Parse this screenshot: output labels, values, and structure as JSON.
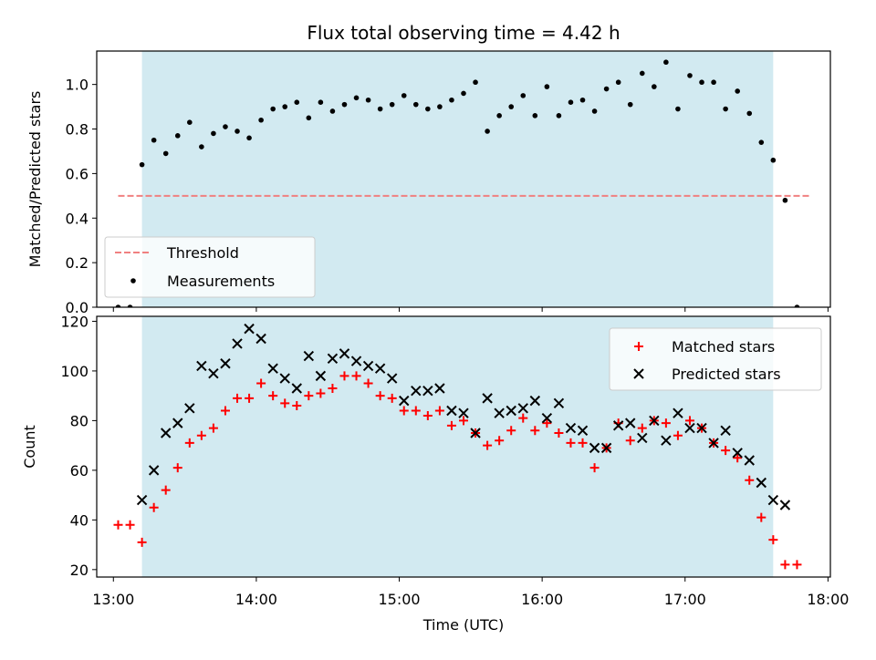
{
  "title": "Flux total observing time = 4.42 h",
  "colors": {
    "shade": "#add8e6",
    "threshold": "#f08080",
    "measurements": "#000000",
    "matched": "#ff0000",
    "predicted": "#000000"
  },
  "chart_data": [
    {
      "type": "scatter",
      "ylabel": "Matched/Predicted stars",
      "xlabel": "",
      "xlim": [
        "12:53",
        "18:01"
      ],
      "ylim": [
        0,
        1.15
      ],
      "y_ticks": [
        0.0,
        0.2,
        0.4,
        0.6,
        0.8,
        1.0
      ],
      "x_ticks": [
        "13:00",
        "14:00",
        "15:00",
        "16:00",
        "17:00",
        "18:00"
      ],
      "shaded_region": [
        "13:12",
        "17:37"
      ],
      "threshold": {
        "label": "Threshold",
        "value": 0.5,
        "x_range": [
          "13:02",
          "17:52"
        ]
      },
      "legend": {
        "position": "lower-left",
        "entries": [
          "Threshold",
          "Measurements"
        ]
      },
      "series": [
        {
          "name": "Measurements",
          "x": [
            "13:02",
            "13:07",
            "13:12",
            "13:17",
            "13:22",
            "13:27",
            "13:32",
            "13:37",
            "13:42",
            "13:47",
            "13:52",
            "13:57",
            "14:02",
            "14:07",
            "14:12",
            "14:17",
            "14:22",
            "14:27",
            "14:32",
            "14:37",
            "14:42",
            "14:47",
            "14:52",
            "14:57",
            "15:02",
            "15:07",
            "15:12",
            "15:17",
            "15:22",
            "15:27",
            "15:32",
            "15:37",
            "15:42",
            "15:47",
            "15:52",
            "15:57",
            "16:02",
            "16:07",
            "16:12",
            "16:17",
            "16:22",
            "16:27",
            "16:32",
            "16:37",
            "16:42",
            "16:47",
            "16:52",
            "16:57",
            "17:02",
            "17:07",
            "17:12",
            "17:17",
            "17:22",
            "17:27",
            "17:32",
            "17:37",
            "17:42",
            "17:47"
          ],
          "values": [
            0.0,
            0.0,
            0.64,
            0.75,
            0.69,
            0.77,
            0.83,
            0.72,
            0.78,
            0.81,
            0.79,
            0.76,
            0.84,
            0.89,
            0.9,
            0.92,
            0.85,
            0.92,
            0.88,
            0.91,
            0.94,
            0.93,
            0.89,
            0.91,
            0.95,
            0.91,
            0.89,
            0.9,
            0.93,
            0.96,
            1.01,
            0.79,
            0.86,
            0.9,
            0.95,
            0.86,
            0.99,
            0.86,
            0.92,
            0.93,
            0.88,
            0.98,
            1.01,
            0.91,
            1.05,
            0.99,
            1.1,
            0.89,
            1.04,
            1.01,
            1.01,
            0.89,
            0.97,
            0.87,
            0.74,
            0.66,
            0.48,
            0.0
          ]
        }
      ]
    },
    {
      "type": "scatter",
      "ylabel": "Count",
      "xlabel": "Time (UTC)",
      "xlim": [
        "12:53",
        "18:01"
      ],
      "ylim": [
        17,
        122
      ],
      "y_ticks": [
        20,
        40,
        60,
        80,
        100,
        120
      ],
      "x_ticks": [
        "13:00",
        "14:00",
        "15:00",
        "16:00",
        "17:00",
        "18:00"
      ],
      "shaded_region": [
        "13:12",
        "17:37"
      ],
      "legend": {
        "position": "top-right",
        "entries": [
          "Matched stars",
          "Predicted stars"
        ]
      },
      "series": [
        {
          "name": "Matched stars",
          "x": [
            "13:02",
            "13:07",
            "13:12",
            "13:17",
            "13:22",
            "13:27",
            "13:32",
            "13:37",
            "13:42",
            "13:47",
            "13:52",
            "13:57",
            "14:02",
            "14:07",
            "14:12",
            "14:17",
            "14:22",
            "14:27",
            "14:32",
            "14:37",
            "14:42",
            "14:47",
            "14:52",
            "14:57",
            "15:02",
            "15:07",
            "15:12",
            "15:17",
            "15:22",
            "15:27",
            "15:32",
            "15:37",
            "15:42",
            "15:47",
            "15:52",
            "15:57",
            "16:02",
            "16:07",
            "16:12",
            "16:17",
            "16:22",
            "16:27",
            "16:32",
            "16:37",
            "16:42",
            "16:47",
            "16:52",
            "16:57",
            "17:02",
            "17:07",
            "17:12",
            "17:17",
            "17:22",
            "17:27",
            "17:32",
            "17:37",
            "17:42",
            "17:47"
          ],
          "values": [
            38,
            38,
            31,
            45,
            52,
            61,
            71,
            74,
            77,
            84,
            89,
            89,
            95,
            90,
            87,
            86,
            90,
            91,
            93,
            98,
            98,
            95,
            90,
            89,
            84,
            84,
            82,
            84,
            78,
            80,
            75,
            70,
            72,
            76,
            81,
            76,
            79,
            75,
            71,
            71,
            61,
            69,
            79,
            72,
            77,
            80,
            79,
            74,
            80,
            77,
            71,
            68,
            65,
            56,
            41,
            32,
            22,
            22
          ]
        },
        {
          "name": "Predicted stars",
          "x": [
            "13:12",
            "13:17",
            "13:22",
            "13:27",
            "13:32",
            "13:37",
            "13:42",
            "13:47",
            "13:52",
            "13:57",
            "14:02",
            "14:07",
            "14:12",
            "14:17",
            "14:22",
            "14:27",
            "14:32",
            "14:37",
            "14:42",
            "14:47",
            "14:52",
            "14:57",
            "15:02",
            "15:07",
            "15:12",
            "15:17",
            "15:22",
            "15:27",
            "15:32",
            "15:37",
            "15:42",
            "15:47",
            "15:52",
            "15:57",
            "16:02",
            "16:07",
            "16:12",
            "16:17",
            "16:22",
            "16:27",
            "16:32",
            "16:37",
            "16:42",
            "16:47",
            "16:52",
            "16:57",
            "17:02",
            "17:07",
            "17:12",
            "17:17",
            "17:22",
            "17:27",
            "17:32",
            "17:37",
            "17:42"
          ],
          "values": [
            48,
            60,
            75,
            79,
            85,
            102,
            99,
            103,
            111,
            117,
            113,
            101,
            97,
            93,
            106,
            98,
            105,
            107,
            104,
            102,
            101,
            97,
            88,
            92,
            92,
            93,
            84,
            83,
            75,
            89,
            83,
            84,
            85,
            88,
            81,
            87,
            77,
            76,
            69,
            69,
            78,
            79,
            73,
            80,
            72,
            83,
            77,
            77,
            71,
            76,
            67,
            64,
            55,
            48,
            46
          ]
        }
      ]
    }
  ]
}
